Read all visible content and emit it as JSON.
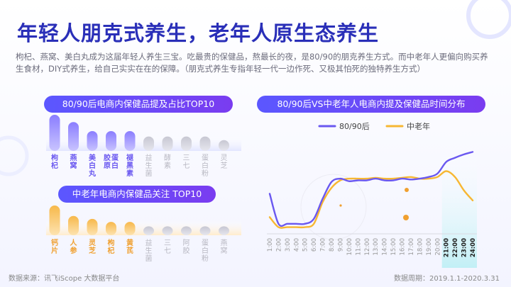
{
  "title": "年轻人朋克式养生，老年人原生态养生",
  "subtitle": "枸杞、燕窝、美白丸成为这届年轻人养生三宝。吃最贵的保健品，熬最长的夜，是80/90的朋克养生方式。而中老年人更偏向购买养生食材，DIY式养生，给自己实实在在的保障。（朋克式养生专指年轻一代一边作死、又极其怕死的独特养生方式）",
  "footer": {
    "source": "数据来源：讯飞iScope 大数据平台",
    "period": "数据周期：2019.1.1-2020.3.31"
  },
  "colors": {
    "young": "#6a58f0",
    "old": "#f7b733",
    "highlight_young": "#6a58f0",
    "highlight_old": "#f0a030",
    "muted": "#b8b8c2"
  },
  "chart_data": [
    {
      "type": "bar",
      "title": "80/90后电商内保健品提及占比TOP10",
      "categories": [
        "枸杞",
        "燕窝",
        "美白丸",
        "胶原蛋白",
        "褪黑素",
        "益生菌",
        "酵素",
        "三七",
        "蛋白粉",
        "灵芝"
      ],
      "values": [
        10,
        8,
        5.5,
        5.5,
        5.5,
        4,
        4,
        4,
        4,
        3
      ],
      "highlighted": 5
    },
    {
      "type": "bar",
      "title": "中老年电商内保健品关注 TOP10",
      "categories": [
        "钙片",
        "人参",
        "灵芝",
        "枸杞",
        "黄芪",
        "益生菌",
        "三七",
        "阿胶",
        "蛋白粉",
        "燕窝"
      ],
      "values": [
        10,
        6.5,
        5.5,
        4.5,
        4.5,
        3,
        3,
        3,
        3,
        3
      ],
      "highlighted": 5
    },
    {
      "type": "line",
      "title": "80/90后VS中老年人电商内提及保健品时间分布",
      "x": [
        "1:00",
        "2:00",
        "3:00",
        "4:00",
        "5:00",
        "6:00",
        "7:00",
        "8:00",
        "9:00",
        "10:00",
        "11:00",
        "12:00",
        "13:00",
        "14:00",
        "15:00",
        "16:00",
        "17:00",
        "18:00",
        "19:00",
        "20:00",
        "21:00",
        "22:00",
        "23:00",
        "24:00"
      ],
      "series": [
        {
          "name": "80/90后",
          "values": [
            48,
            12,
            12,
            12,
            12,
            18,
            42,
            62,
            66,
            63,
            64,
            64,
            66,
            64,
            64,
            66,
            65,
            66,
            68,
            72,
            86,
            91,
            95,
            98
          ]
        },
        {
          "name": "中老年",
          "values": [
            20,
            8,
            8,
            8,
            8,
            12,
            38,
            55,
            64,
            66,
            66,
            66,
            67,
            66,
            66,
            67,
            68,
            66,
            66,
            68,
            75,
            68,
            52,
            40
          ]
        }
      ],
      "highlight_range": [
        "21:00",
        "24:00"
      ],
      "ylim": [
        0,
        100
      ],
      "legend": "top-center"
    }
  ]
}
